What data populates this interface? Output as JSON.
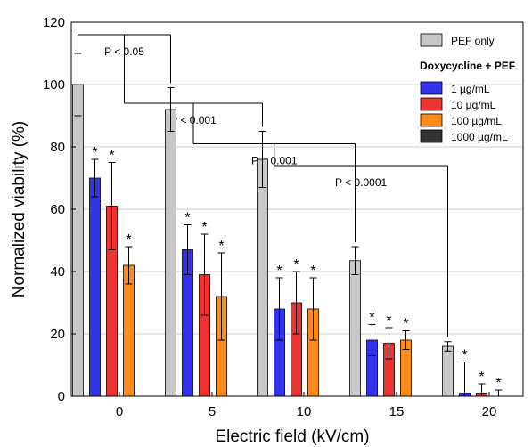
{
  "chart_data": {
    "type": "bar",
    "xlabel": "Electric field (kV/cm)",
    "ylabel": "Normalized viability (%)",
    "ylim": [
      0,
      120
    ],
    "yticks": [
      0,
      20,
      40,
      60,
      80,
      100,
      120
    ],
    "grid": false,
    "legend_placement": "top-right",
    "categories": [
      "0",
      "5",
      "10",
      "15",
      "20"
    ],
    "series": [
      {
        "name": "PEF only",
        "color": "#c8c8c8",
        "values": [
          100,
          92,
          76,
          43.5,
          16
        ],
        "errors": [
          10,
          7,
          9,
          4.5,
          1.5
        ],
        "significant": [
          false,
          false,
          false,
          false,
          false
        ]
      },
      {
        "name": "1 µg/mL",
        "color": "#3333ee",
        "values": [
          70,
          47,
          28,
          18,
          1
        ],
        "errors": [
          6,
          8,
          10,
          5,
          10
        ],
        "significant": [
          true,
          true,
          true,
          true,
          true
        ]
      },
      {
        "name": "10 µg/mL",
        "color": "#ee3333",
        "values": [
          61,
          39,
          30,
          17,
          1
        ],
        "errors": [
          14,
          13,
          10,
          5,
          3
        ],
        "significant": [
          true,
          true,
          true,
          true,
          true
        ]
      },
      {
        "name": "100 µg/mL",
        "color": "#ff8c1a",
        "values": [
          42,
          32,
          28,
          18,
          0
        ],
        "errors": [
          6,
          14,
          10,
          3,
          2
        ],
        "significant": [
          true,
          true,
          true,
          true,
          true
        ]
      },
      {
        "name": "1000 µg/mL",
        "color": "#333333",
        "values": [
          0,
          0,
          0,
          0,
          0
        ],
        "errors": [
          0,
          0,
          0,
          0,
          0
        ],
        "significant": [
          false,
          false,
          false,
          false,
          false
        ]
      }
    ],
    "legend": {
      "group_title": "Doxycycline + PEF"
    },
    "significance_brackets": [
      {
        "label": "P < 0.05",
        "from_category": "0",
        "to_category": "5",
        "y": 116
      },
      {
        "label": "P < 0.001",
        "from_category": "5",
        "to_category": "10",
        "y": 94
      },
      {
        "label": "P < 0.001",
        "from_category": "10",
        "to_category": "15",
        "y": 81
      },
      {
        "label": "P < 0.0001",
        "from_category": "15",
        "to_category": "20",
        "y": 74
      }
    ],
    "marker": "*"
  }
}
